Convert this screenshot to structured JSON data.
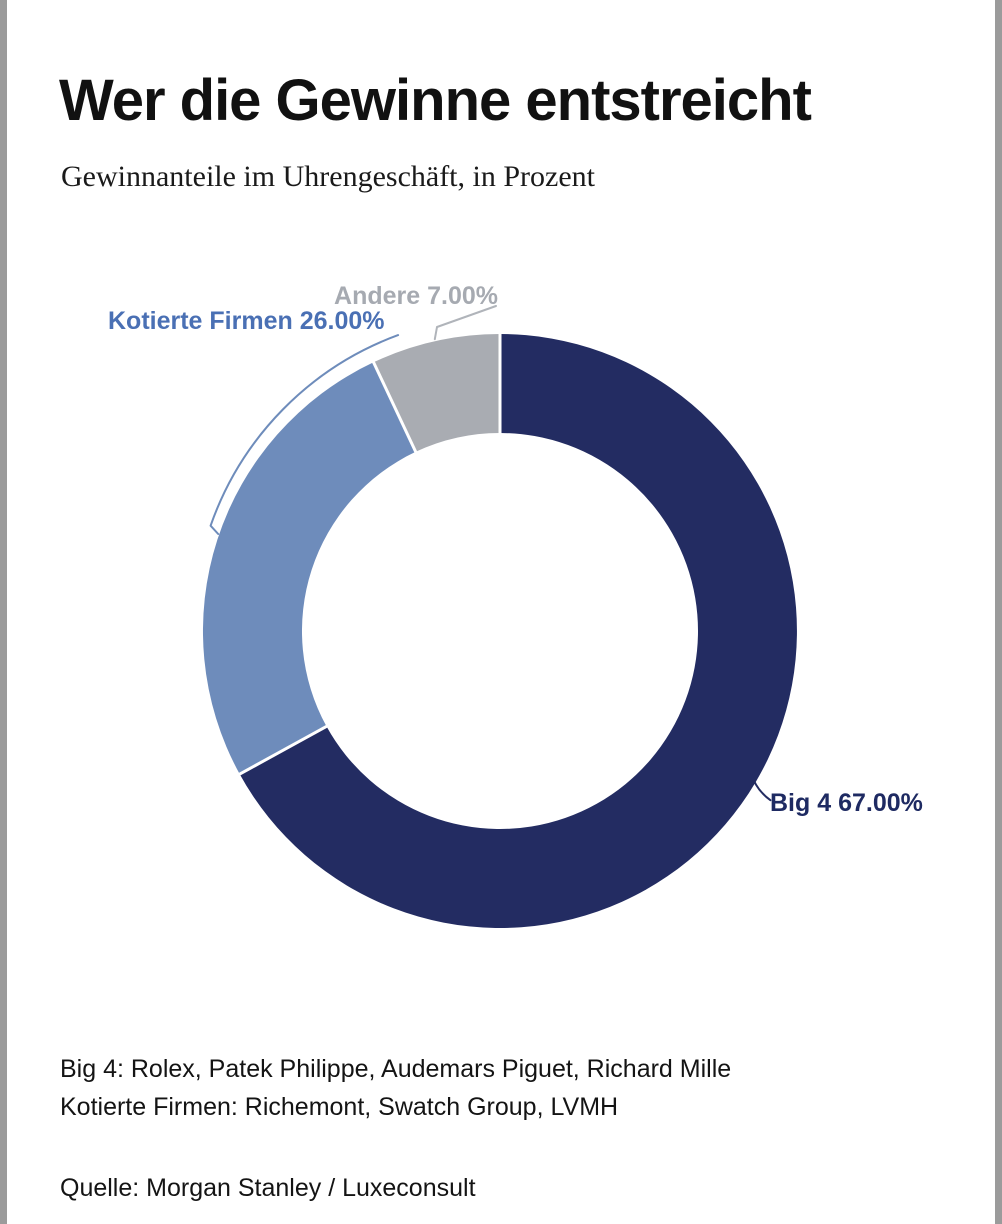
{
  "page": {
    "title": "Wer die Gewinne entstreicht",
    "subtitle": "Gewinnanteile im Uhrengeschäft, in Prozent",
    "footnote_line1": "Big 4: Rolex, Patek Philippe, Audemars Piguet, Richard Mille",
    "footnote_line2": "Kotierte Firmen: Richemont, Swatch Group, LVMH",
    "source": "Quelle: Morgan Stanley / Luxeconsult",
    "edge_bar_color": "#9b9b9b",
    "background_color": "#ffffff"
  },
  "chart_data": {
    "type": "pie",
    "subtype": "donut",
    "title": "Wer die Gewinne entstreicht",
    "subtitle": "Gewinnanteile im Uhrengeschäft, in Prozent",
    "unit": "percent",
    "start_angle_deg": 0,
    "direction": "clockwise",
    "legend": "none",
    "categories": [
      "Big 4",
      "Kotierte Firmen",
      "Andere"
    ],
    "series": [
      {
        "name": "Big 4",
        "value": 67.0,
        "label": "Big 4 67.00%",
        "color": "#232c62",
        "label_color": "#1e2a62",
        "leader_color": "#232c62"
      },
      {
        "name": "Kotierte Firmen",
        "value": 26.0,
        "label": "Kotierte Firmen 26.00%",
        "color": "#6e8cbb",
        "label_color": "#4a70b4",
        "leader_color": "#6e8cbb"
      },
      {
        "name": "Andere",
        "value": 7.0,
        "label": "Andere 7.00%",
        "color": "#a9acb2",
        "label_color": "#a6aab1",
        "leader_color": "#b0b4ba"
      }
    ],
    "separator_color": "#ffffff",
    "source": "Quelle: Morgan Stanley / Luxeconsult"
  }
}
